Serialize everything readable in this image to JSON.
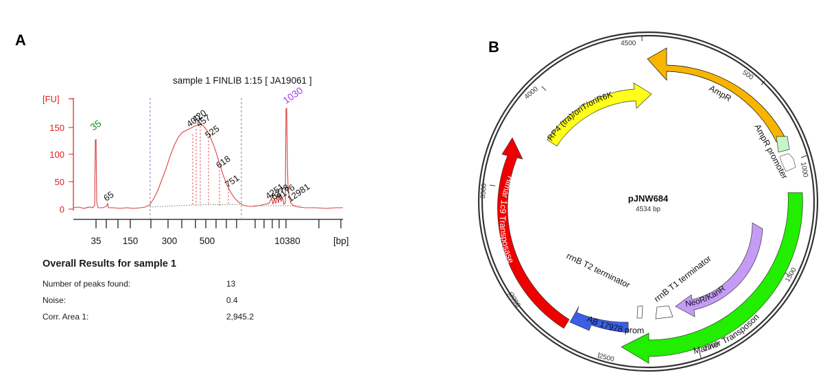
{
  "panelA": {
    "label": "A",
    "sample_title": "sample 1 FINLIB 1:15  [ JA19061 ]",
    "y_unit": "[FU]",
    "x_unit": "[bp]",
    "y_ticks": [
      "150",
      "100",
      "50",
      "0"
    ],
    "x_ticks": [
      "35",
      "150",
      "300",
      "500",
      "10380"
    ],
    "peak_labels": {
      "marker_low": "35",
      "marker_high": "1030",
      "p65": "65",
      "p400": "400",
      "p420": "420",
      "p457": "457",
      "p525": "525",
      "p618": "618",
      "p751": "751",
      "p12981": "12981",
      "cluster": [
        "4251",
        "6278",
        "9176"
      ]
    },
    "results": {
      "title": "Overall Results for sample 1",
      "rows": [
        {
          "label": "Number of peaks found:",
          "value": "13"
        },
        {
          "label": "Noise:",
          "value": "0.4"
        },
        {
          "label": "Corr. Area 1:",
          "value": "2,945.2"
        }
      ]
    },
    "colors": {
      "axis": "#e11d1d",
      "trace": "#d94040",
      "marker_low": "#1f8a1f",
      "marker_high": "#a33be0",
      "gel_upper": "#a855f7",
      "gel_lower": "#1f8a1f"
    }
  },
  "panelB": {
    "label": "B",
    "plasmid_name": "pJNW684",
    "plasmid_size": "4534 bp",
    "ticks": [
      "500",
      "1000",
      "1500",
      "2000",
      "2500",
      "3000",
      "3500",
      "4000",
      "4500"
    ],
    "features": {
      "ampr": "AmpR",
      "ampr_promoter": "AmpR promoter",
      "rp4": "RP4 (tra)/oriT/oriR6K",
      "himar": "Himar 1c9 Transposase",
      "mariner": "Mariner Transposon",
      "neor": "NeoR/KanR",
      "ab_promoter": "AB 17978 promoter",
      "rrnb_t1": "rrnB T1 terminator",
      "rrnb_t2": "rrnB T2 terminator"
    },
    "colors": {
      "ampr": "#f7b500",
      "ampr_promoter": "#c8f5c8",
      "rp4": "#ffff1a",
      "himar": "#ee0000",
      "mariner": "#22ee00",
      "neor": "#c49cf5",
      "ab_promoter": "#3a5ee8"
    }
  }
}
